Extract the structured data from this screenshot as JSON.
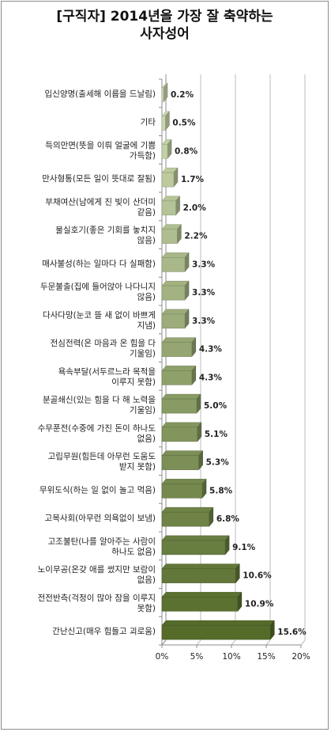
{
  "chart_data": {
    "type": "bar",
    "title_lines": [
      "[구직자] 2014년을 가장 잘 축약하는",
      "사자성어"
    ],
    "categories": [
      [
        "입신양명(출세해 이름을 드날림)"
      ],
      [
        "기타"
      ],
      [
        "득의만면(뜻을 이뤄 얼굴에 기쁨",
        "가득함)"
      ],
      [
        "만사형통(모든 일이 뜻대로 잘됨)"
      ],
      [
        "부채여산(남에게 진 빚이 산더미",
        "같음)"
      ],
      [
        "물실호기(좋은 기회를 놓치지",
        "않음)"
      ],
      [
        "매사불성(하는 일마다 다 실패함)"
      ],
      [
        "두문불출(집에 들어앉아 나다니지",
        "않음)"
      ],
      [
        "다사다망(눈코 뜰 새 없이 바쁘게",
        "지냄)"
      ],
      [
        "전심전력(온 마음과 온 힘을 다",
        "기울임)"
      ],
      [
        "욕속부달(서두르느라 목적을",
        "이루지 못함)"
      ],
      [
        "분골쇄신(있는 힘을 다 해 노력을",
        "기울임)"
      ],
      [
        "수무푼전(수중에 가진 돈이 하나도",
        "없음)"
      ],
      [
        "고립무원(힘든데 아무런 도움도",
        "받지 못함)"
      ],
      [
        "무위도식(하는 일 없이 놀고 먹음)"
      ],
      [
        "고목사회(아무런 의욕없이 보냄)"
      ],
      [
        "고조불탄(나를 알아주는 사람이",
        "하나도 없음)"
      ],
      [
        "노이무공(온갖 애를 썼지만 보람이",
        "없음)"
      ],
      [
        "전전반측(걱정이 많아 잠을 이루지",
        "못함)"
      ],
      [
        "간난신고(매우 힘들고 괴로움)"
      ]
    ],
    "values": [
      0.2,
      0.5,
      0.8,
      1.7,
      2.0,
      2.2,
      3.3,
      3.3,
      3.3,
      4.3,
      4.3,
      5.0,
      5.1,
      5.3,
      5.8,
      6.8,
      9.1,
      10.6,
      10.9,
      15.6
    ],
    "value_labels": [
      "0.2%",
      "0.5%",
      "0.8%",
      "1.7%",
      "2.0%",
      "2.2%",
      "3.3%",
      "3.3%",
      "3.3%",
      "4.3%",
      "4.3%",
      "5.0%",
      "5.1%",
      "5.3%",
      "5.8%",
      "6.8%",
      "9.1%",
      "10.6%",
      "10.9%",
      "15.6%"
    ],
    "xlim": [
      0,
      20
    ],
    "x_ticks": [
      "0%",
      "5%",
      "10%",
      "15%",
      "20%"
    ],
    "grid": true,
    "style": "3d-bar",
    "colors": {
      "light": "#cfdcb4",
      "dark": "#556b2a",
      "grid": "#bdbdbd",
      "axis": "#8c8c8c"
    }
  }
}
